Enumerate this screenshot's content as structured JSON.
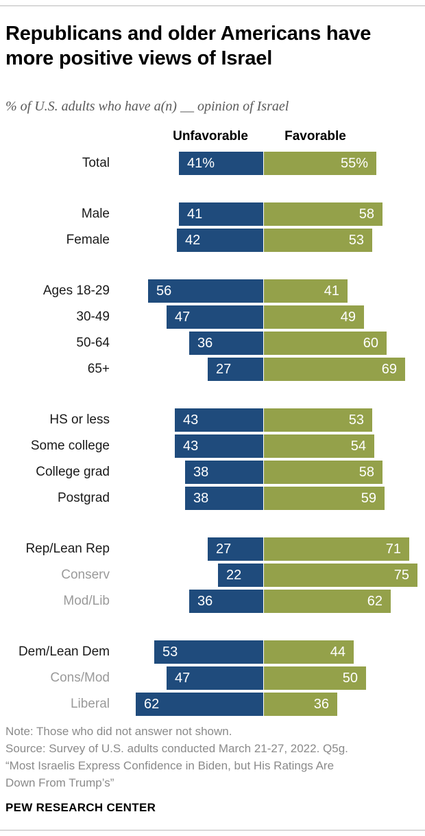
{
  "header": {
    "title": "Republicans and older Americans have more positive views of Israel",
    "subtitle": "% of U.S. adults who have a(n) __ opinion of Israel"
  },
  "colors": {
    "bar_unfavorable": "#1F4B7C",
    "bar_favorable": "#94A14A",
    "muted_label": "#9A9A9A",
    "note_text": "#8A8A8A"
  },
  "chart_data": {
    "type": "bar",
    "orientation": "horizontal-diverging",
    "unit": "percent",
    "gridlines": false,
    "value_labels_shown": true,
    "column_headers": [
      "Unfavorable",
      "Favorable"
    ],
    "series": [
      {
        "name": "Unfavorable",
        "color": "#1F4B7C"
      },
      {
        "name": "Favorable",
        "color": "#94A14A"
      }
    ],
    "groups": [
      {
        "name": "total",
        "rows": [
          {
            "label": "Total",
            "muted": false,
            "unfavorable": 41,
            "favorable": 55,
            "unfavorable_label": "41%",
            "favorable_label": "55%"
          }
        ]
      },
      {
        "name": "gender",
        "rows": [
          {
            "label": "Male",
            "muted": false,
            "unfavorable": 41,
            "favorable": 58,
            "unfavorable_label": "41",
            "favorable_label": "58"
          },
          {
            "label": "Female",
            "muted": false,
            "unfavorable": 42,
            "favorable": 53,
            "unfavorable_label": "42",
            "favorable_label": "53"
          }
        ]
      },
      {
        "name": "age",
        "rows": [
          {
            "label": "Ages 18-29",
            "muted": false,
            "unfavorable": 56,
            "favorable": 41,
            "unfavorable_label": "56",
            "favorable_label": "41"
          },
          {
            "label": "30-49",
            "muted": false,
            "unfavorable": 47,
            "favorable": 49,
            "unfavorable_label": "47",
            "favorable_label": "49"
          },
          {
            "label": "50-64",
            "muted": false,
            "unfavorable": 36,
            "favorable": 60,
            "unfavorable_label": "36",
            "favorable_label": "60"
          },
          {
            "label": "65+",
            "muted": false,
            "unfavorable": 27,
            "favorable": 69,
            "unfavorable_label": "27",
            "favorable_label": "69"
          }
        ]
      },
      {
        "name": "education",
        "rows": [
          {
            "label": "HS or less",
            "muted": false,
            "unfavorable": 43,
            "favorable": 53,
            "unfavorable_label": "43",
            "favorable_label": "53"
          },
          {
            "label": "Some college",
            "muted": false,
            "unfavorable": 43,
            "favorable": 54,
            "unfavorable_label": "43",
            "favorable_label": "54"
          },
          {
            "label": "College grad",
            "muted": false,
            "unfavorable": 38,
            "favorable": 58,
            "unfavorable_label": "38",
            "favorable_label": "58"
          },
          {
            "label": "Postgrad",
            "muted": false,
            "unfavorable": 38,
            "favorable": 59,
            "unfavorable_label": "38",
            "favorable_label": "59"
          }
        ]
      },
      {
        "name": "republican",
        "rows": [
          {
            "label": "Rep/Lean Rep",
            "muted": false,
            "unfavorable": 27,
            "favorable": 71,
            "unfavorable_label": "27",
            "favorable_label": "71"
          },
          {
            "label": "Conserv",
            "muted": true,
            "unfavorable": 22,
            "favorable": 75,
            "unfavorable_label": "22",
            "favorable_label": "75"
          },
          {
            "label": "Mod/Lib",
            "muted": true,
            "unfavorable": 36,
            "favorable": 62,
            "unfavorable_label": "36",
            "favorable_label": "62"
          }
        ]
      },
      {
        "name": "democrat",
        "rows": [
          {
            "label": "Dem/Lean Dem",
            "muted": false,
            "unfavorable": 53,
            "favorable": 44,
            "unfavorable_label": "53",
            "favorable_label": "44"
          },
          {
            "label": "Cons/Mod",
            "muted": true,
            "unfavorable": 47,
            "favorable": 50,
            "unfavorable_label": "47",
            "favorable_label": "50"
          },
          {
            "label": "Liberal",
            "muted": true,
            "unfavorable": 62,
            "favorable": 36,
            "unfavorable_label": "62",
            "favorable_label": "36"
          }
        ]
      }
    ]
  },
  "footer": {
    "note_lines": [
      "Note: Those who did not answer not shown.",
      "Source: Survey of U.S. adults conducted March 21-27, 2022. Q5g.",
      "“Most Israelis Express Confidence in Biden, but His Ratings Are",
      "Down From Trump’s”"
    ],
    "brand": "PEW RESEARCH CENTER"
  }
}
